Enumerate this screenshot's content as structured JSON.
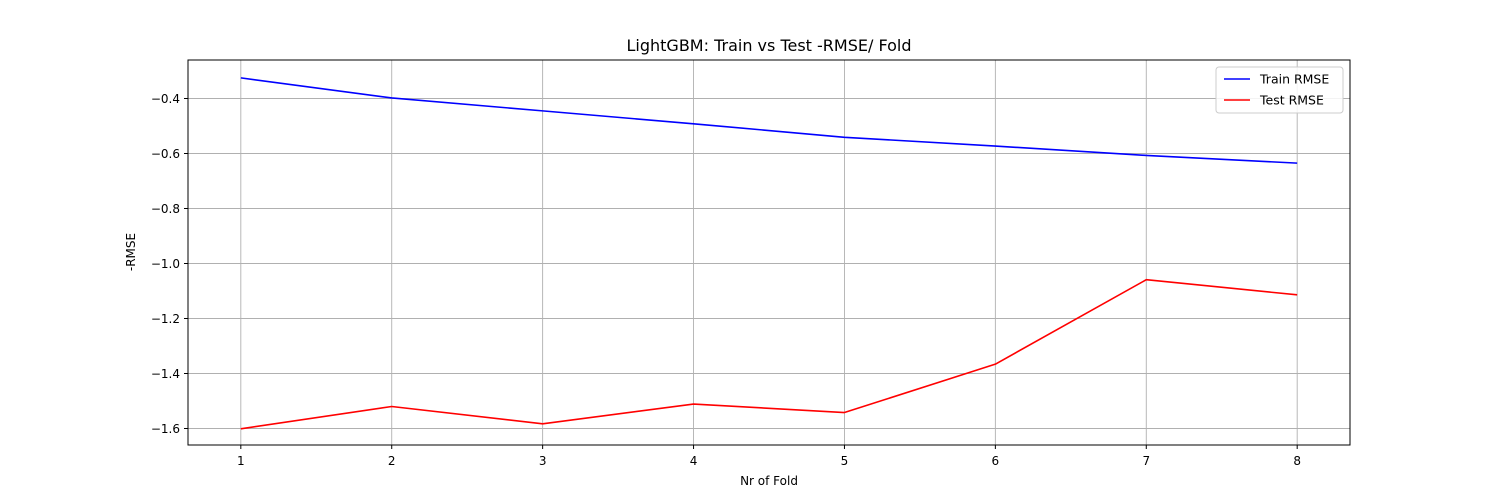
{
  "chart_data": {
    "type": "line",
    "title": "LightGBM: Train vs Test -RMSE/ Fold",
    "xlabel": "Nr of Fold",
    "ylabel": "-RMSE",
    "x": [
      1,
      2,
      3,
      4,
      5,
      6,
      7,
      8
    ],
    "xlim": [
      0.65,
      8.35
    ],
    "ylim": [
      -1.66,
      -0.26
    ],
    "xticks": [
      "1",
      "2",
      "3",
      "4",
      "5",
      "6",
      "7",
      "8"
    ],
    "yticks": [
      -1.6,
      -1.4,
      -1.2,
      -1.0,
      -0.8,
      -0.6,
      -0.4
    ],
    "ytick_labels": [
      "−1.6",
      "−1.4",
      "−1.2",
      "−1.0",
      "−0.8",
      "−0.6",
      "−0.4"
    ],
    "grid": true,
    "legend_position": "top-right",
    "series": [
      {
        "name": "Train RMSE",
        "color": "#0000ff",
        "values": [
          -0.325,
          -0.398,
          -0.445,
          -0.492,
          -0.541,
          -0.573,
          -0.607,
          -0.635
        ]
      },
      {
        "name": "Test RMSE",
        "color": "#ff0000",
        "values": [
          -1.601,
          -1.52,
          -1.583,
          -1.511,
          -1.542,
          -1.366,
          -1.059,
          -1.114
        ]
      }
    ]
  }
}
